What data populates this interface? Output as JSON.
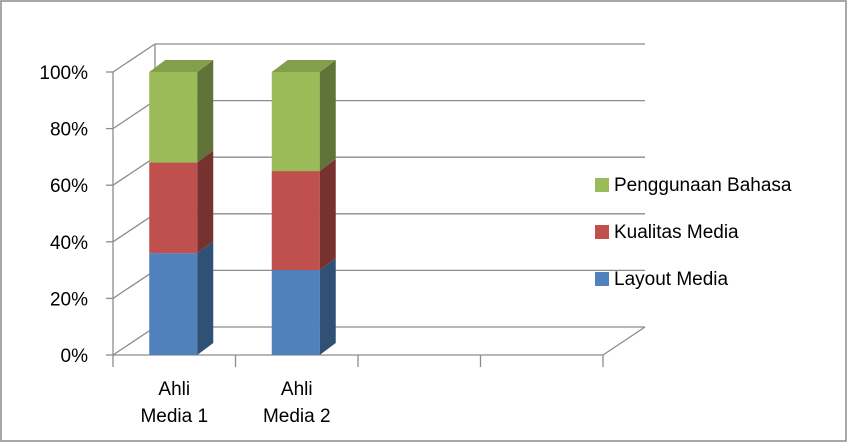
{
  "chart_data": {
    "type": "bar",
    "stacked": true,
    "percent_stacked": true,
    "three_d": true,
    "categories": [
      "Ahli\nMedia 1",
      "Ahli\nMedia 2"
    ],
    "series": [
      {
        "name": "Layout Media",
        "values": [
          36,
          30
        ],
        "color": "#4F81BD"
      },
      {
        "name": "Kualitas Media",
        "values": [
          32,
          35
        ],
        "color": "#C0504D"
      },
      {
        "name": "Penggunaan Bahasa",
        "values": [
          32,
          35
        ],
        "color": "#9BBB59"
      }
    ],
    "y_ticks": [
      "0%",
      "20%",
      "40%",
      "60%",
      "80%",
      "100%"
    ],
    "ylim": [
      0,
      100
    ],
    "grid": true,
    "legend_position": "right"
  }
}
